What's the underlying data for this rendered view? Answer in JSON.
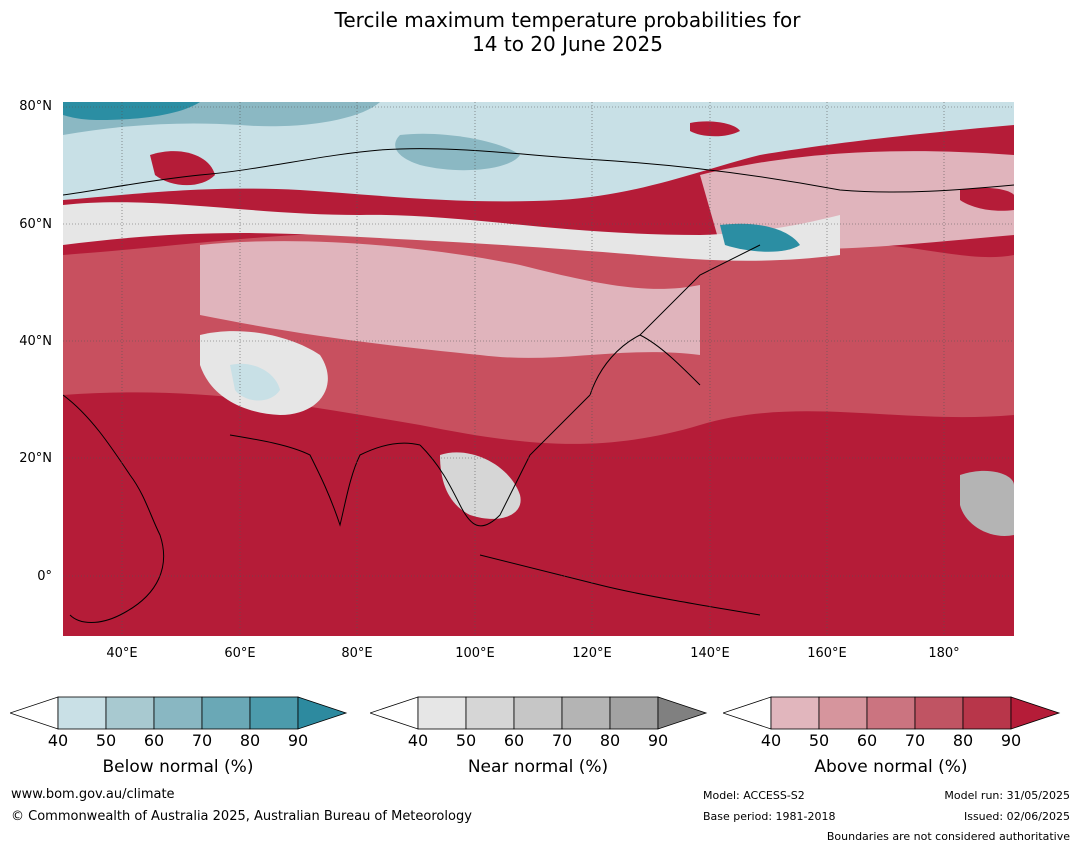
{
  "title_line1": "Tercile maximum temperature probabilities for",
  "title_line2": "14 to 20 June 2025",
  "map": {
    "lat_labels": [
      "80°N",
      "60°N",
      "40°N",
      "20°N",
      "0°"
    ],
    "lon_labels": [
      "40°E",
      "60°E",
      "80°E",
      "100°E",
      "120°E",
      "140°E",
      "160°E",
      "180°"
    ],
    "colors": {
      "above_strong": "#b51c38",
      "above_mid": "#c8505f",
      "above_light": "#e0b4bc",
      "near": "#e6e6e6",
      "below_light": "#c8e0e6",
      "below_mid": "#8bb8c3",
      "below_strong": "#2b8ea3"
    }
  },
  "colorbars": [
    {
      "label": "Below normal (%)",
      "ticks": [
        "40",
        "50",
        "60",
        "70",
        "80",
        "90"
      ],
      "colors": [
        "#ffffff",
        "#c9e0e6",
        "#a8c9d0",
        "#89b7c2",
        "#6aa8b6",
        "#4c9bac",
        "#2d8a9f"
      ]
    },
    {
      "label": "Near normal (%)",
      "ticks": [
        "40",
        "50",
        "60",
        "70",
        "80",
        "90"
      ],
      "colors": [
        "#ffffff",
        "#e6e6e6",
        "#d6d6d6",
        "#c6c6c6",
        "#b4b4b4",
        "#a2a2a2",
        "#808080"
      ]
    },
    {
      "label": "Above normal (%)",
      "ticks": [
        "40",
        "50",
        "60",
        "70",
        "80",
        "90"
      ],
      "colors": [
        "#ffffff",
        "#e1b6bd",
        "#d6959d",
        "#cb7480",
        "#c05463",
        "#b8364a",
        "#b51c38"
      ]
    }
  ],
  "footer": {
    "website": "www.bom.gov.au/climate",
    "copyright": "© Commonwealth of Australia 2025, Australian Bureau of Meteorology",
    "model": "Model: ACCESS-S2",
    "base_period": "Base period: 1981-2018",
    "model_run": "Model run: 31/05/2025",
    "issued": "Issued: 02/06/2025",
    "boundaries": "Boundaries are not considered authoritative"
  }
}
